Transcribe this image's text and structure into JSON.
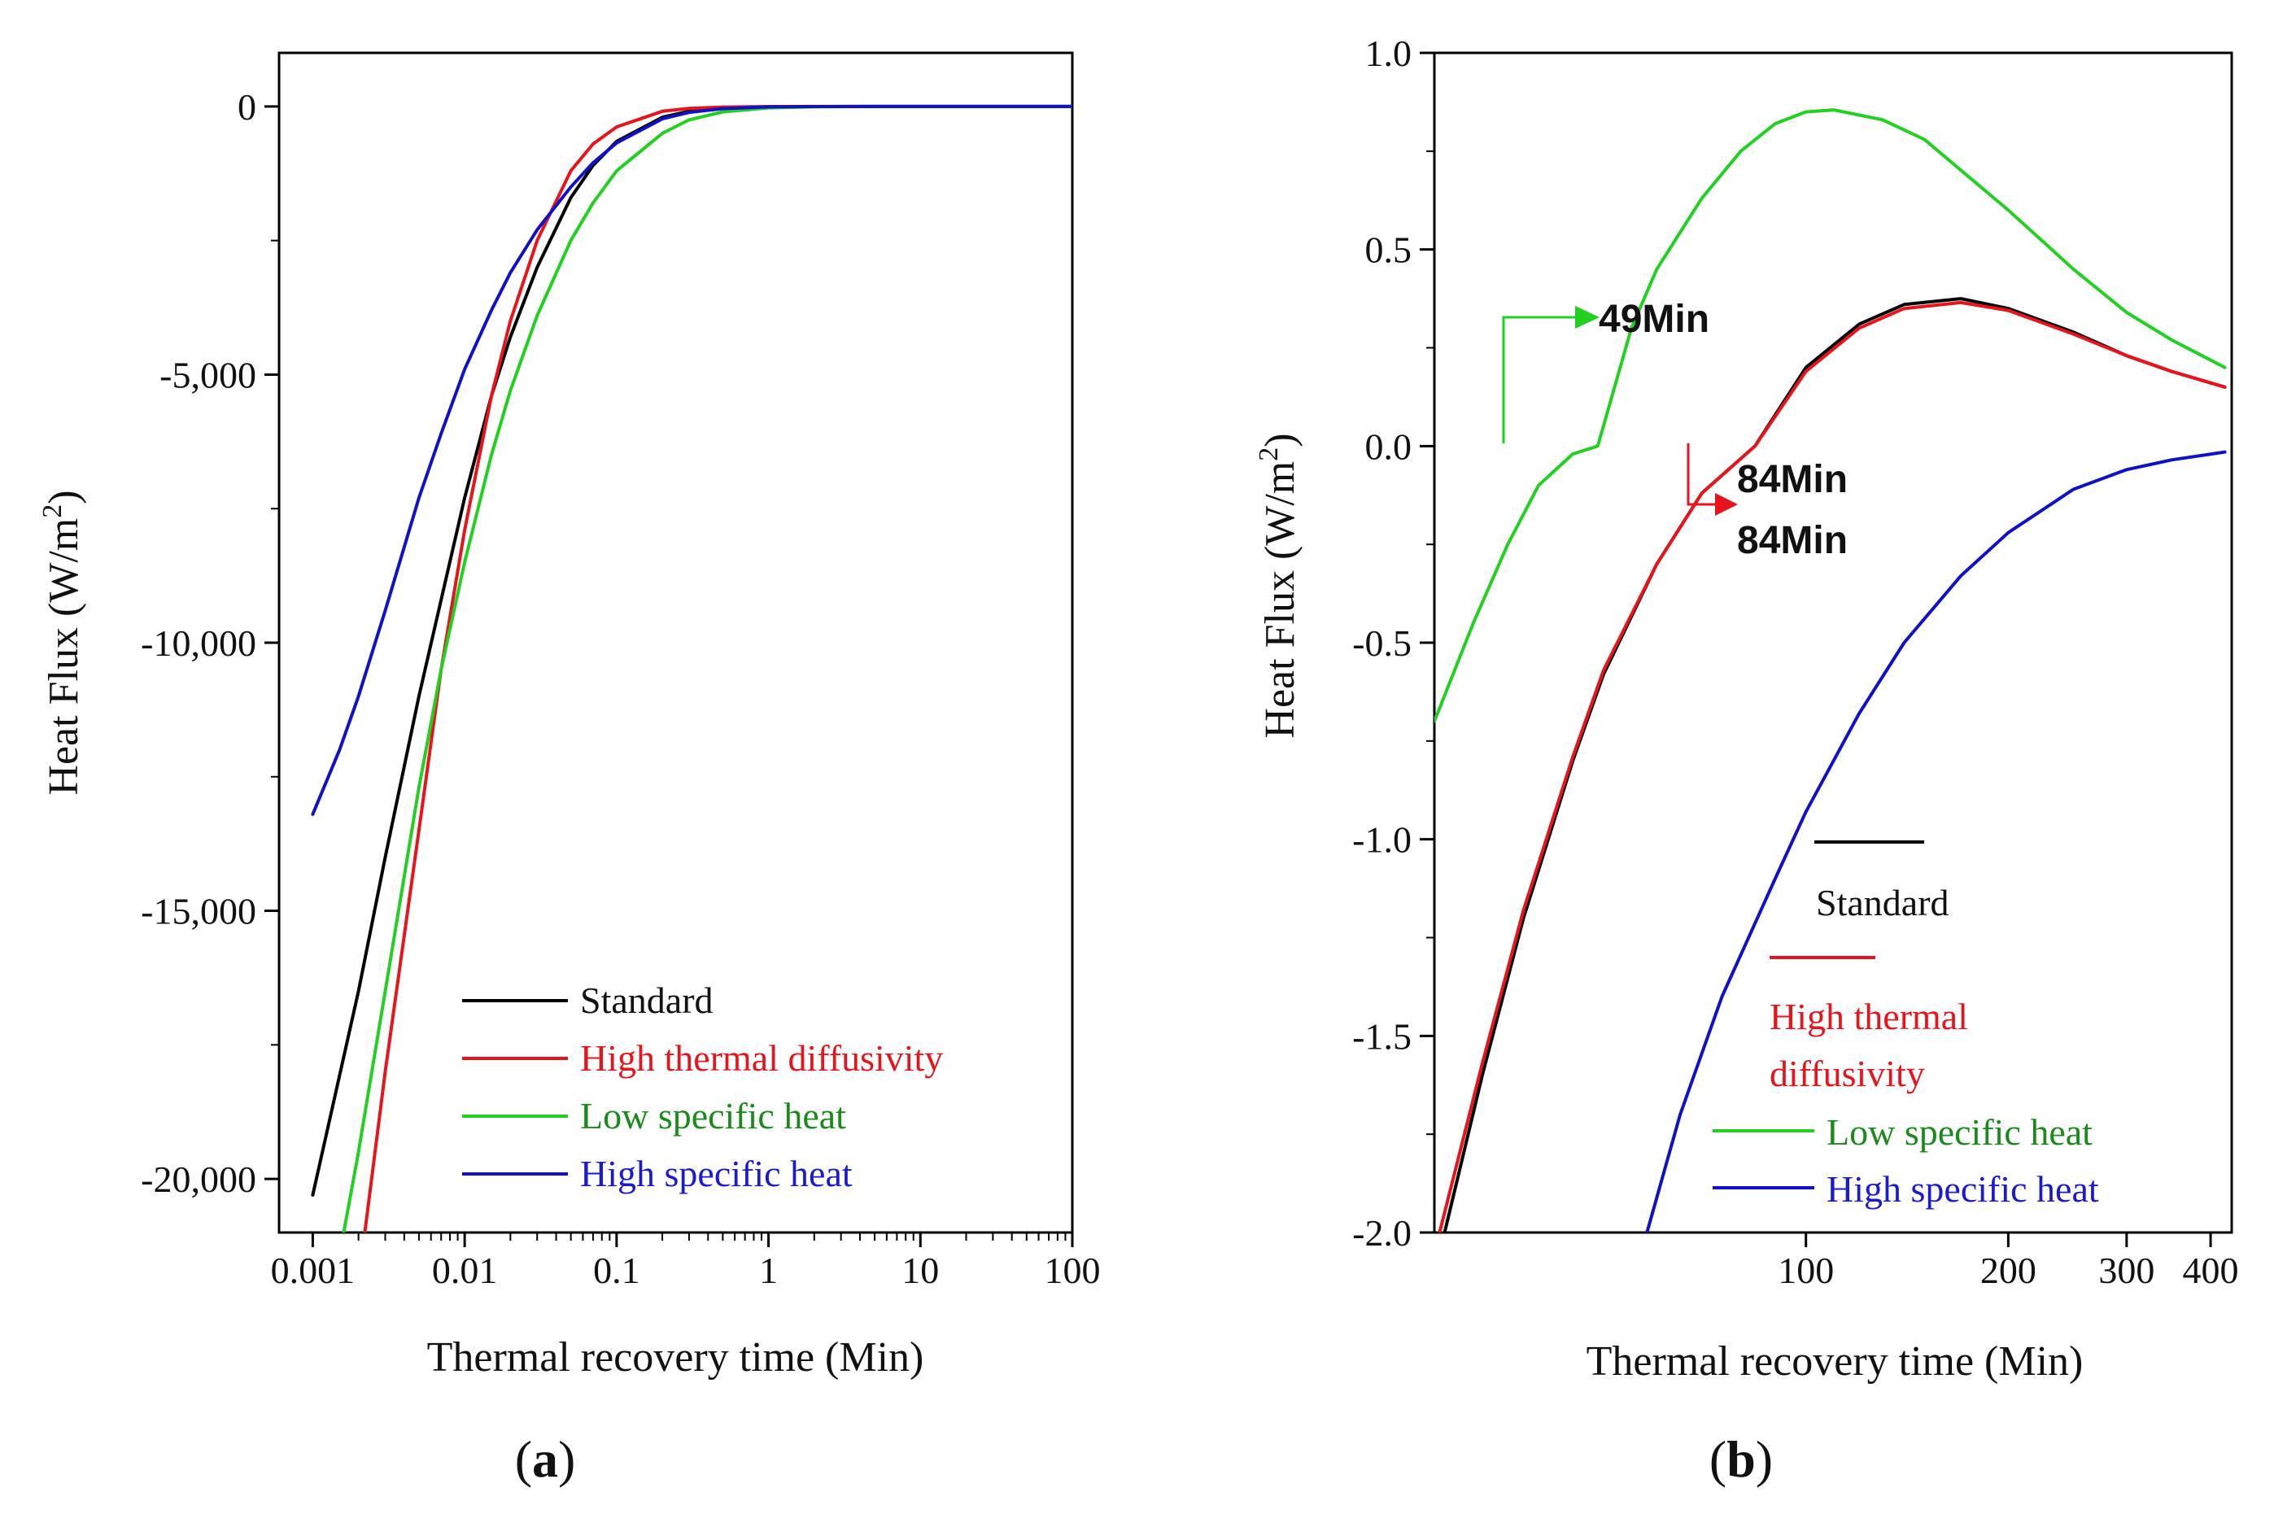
{
  "chart_data": [
    {
      "panel_label": "a",
      "type": "line",
      "xlabel": "Thermal recovery time (Min)",
      "ylabel": "Heat Flux (W/m²)",
      "xscale": "log",
      "xlim": [
        0.0006,
        100
      ],
      "ylim": [
        -21000,
        1000
      ],
      "xticks": [
        0.001,
        0.01,
        0.1,
        1,
        10,
        100
      ],
      "xtick_labels": [
        "0.001",
        "0.01",
        "0.1",
        "1",
        "10",
        "100"
      ],
      "yticks": [
        0,
        -5000,
        -10000,
        -15000,
        -20000
      ],
      "ytick_labels": [
        "0",
        "-5,000",
        "-10,000",
        "-15,000",
        "-20,000"
      ],
      "grid": false,
      "legend_position": "bottom-right",
      "series": [
        {
          "name": "Standard",
          "color": "#000000",
          "x": [
            0.001,
            0.002,
            0.003,
            0.005,
            0.007,
            0.01,
            0.015,
            0.02,
            0.03,
            0.05,
            0.07,
            0.1,
            0.2,
            0.3,
            0.5,
            1,
            2,
            5,
            10,
            100
          ],
          "y": [
            -20300,
            -16500,
            -14000,
            -11000,
            -9200,
            -7300,
            -5400,
            -4300,
            -3000,
            -1700,
            -1100,
            -650,
            -200,
            -90,
            -30,
            -5,
            -1,
            0,
            0,
            0
          ]
        },
        {
          "name": "High thermal diffusivity",
          "color": "#e8141c",
          "x": [
            0.0022,
            0.003,
            0.005,
            0.007,
            0.01,
            0.015,
            0.02,
            0.03,
            0.05,
            0.07,
            0.1,
            0.2,
            0.3,
            0.5,
            1,
            2,
            5,
            10,
            100
          ],
          "y": [
            -21000,
            -18000,
            -13500,
            -10500,
            -7900,
            -5400,
            -4000,
            -2500,
            -1200,
            -700,
            -380,
            -90,
            -35,
            -10,
            -1,
            0,
            0,
            0,
            0
          ]
        },
        {
          "name": "Low specific heat",
          "color": "#22d022",
          "x": [
            0.0016,
            0.002,
            0.003,
            0.005,
            0.007,
            0.01,
            0.015,
            0.02,
            0.03,
            0.05,
            0.07,
            0.1,
            0.2,
            0.3,
            0.5,
            1,
            2,
            5,
            10,
            100
          ],
          "y": [
            -21000,
            -19500,
            -16500,
            -12700,
            -10500,
            -8500,
            -6500,
            -5300,
            -3900,
            -2500,
            -1800,
            -1200,
            -500,
            -250,
            -100,
            -25,
            -5,
            0,
            0,
            0
          ]
        },
        {
          "name": "High specific heat",
          "color": "#1010c8",
          "x": [
            0.001,
            0.0015,
            0.002,
            0.003,
            0.005,
            0.007,
            0.01,
            0.015,
            0.02,
            0.03,
            0.05,
            0.07,
            0.1,
            0.2,
            0.3,
            0.5,
            1,
            2,
            5,
            10,
            100
          ],
          "y": [
            -13200,
            -12000,
            -11000,
            -9400,
            -7300,
            -6100,
            -4900,
            -3800,
            -3100,
            -2300,
            -1500,
            -1050,
            -680,
            -230,
            -110,
            -40,
            -8,
            -1,
            0,
            0,
            0
          ]
        }
      ],
      "annotations": []
    },
    {
      "panel_label": "b",
      "type": "line",
      "xlabel": "Thermal recovery time (Min)",
      "ylabel": "Heat Flux (W/m²)",
      "xscale": "log",
      "xlim": [
        28,
        430
      ],
      "ylim": [
        -2.0,
        1.0
      ],
      "xticks": [
        100,
        200,
        300,
        400
      ],
      "xtick_labels": [
        "100",
        "200",
        "300",
        "400"
      ],
      "yticks": [
        1.0,
        0.5,
        0.0,
        -0.5,
        -1.0,
        -1.5,
        -2.0
      ],
      "ytick_labels": [
        "1.0",
        "0.5",
        "0.0",
        "-0.5",
        "-1.0",
        "-1.5",
        "-2.0"
      ],
      "grid": false,
      "legend_position": "bottom-right",
      "series": [
        {
          "name": "Standard",
          "color": "#000000",
          "x": [
            29,
            33,
            38,
            45,
            50,
            60,
            70,
            84,
            100,
            120,
            140,
            170,
            200,
            250,
            300,
            350,
            420
          ],
          "y": [
            -2.0,
            -1.6,
            -1.2,
            -0.8,
            -0.58,
            -0.3,
            -0.12,
            0.0,
            0.2,
            0.31,
            0.36,
            0.375,
            0.35,
            0.29,
            0.23,
            0.19,
            0.15
          ]
        },
        {
          "name": "High thermal diffusivity",
          "color": "#e8141c",
          "x": [
            28.5,
            33,
            38,
            45,
            50,
            60,
            70,
            84,
            100,
            120,
            140,
            170,
            200,
            250,
            300,
            350,
            420
          ],
          "y": [
            -2.0,
            -1.57,
            -1.18,
            -0.79,
            -0.57,
            -0.3,
            -0.12,
            0.0,
            0.19,
            0.3,
            0.35,
            0.365,
            0.345,
            0.285,
            0.23,
            0.19,
            0.15
          ]
        },
        {
          "name": "Low specific heat",
          "color": "#22d022",
          "x": [
            28,
            32,
            36,
            40,
            45,
            49,
            55,
            60,
            70,
            80,
            90,
            100,
            110,
            130,
            150,
            200,
            250,
            300,
            350,
            420
          ],
          "y": [
            -0.7,
            -0.45,
            -0.25,
            -0.1,
            -0.02,
            0.0,
            0.3,
            0.45,
            0.63,
            0.75,
            0.82,
            0.85,
            0.855,
            0.83,
            0.78,
            0.6,
            0.45,
            0.34,
            0.27,
            0.2
          ]
        },
        {
          "name": "High specific heat",
          "color": "#1010c8",
          "x": [
            58,
            65,
            75,
            90,
            100,
            120,
            140,
            170,
            200,
            250,
            300,
            350,
            420
          ],
          "y": [
            -2.0,
            -1.7,
            -1.4,
            -1.1,
            -0.93,
            -0.68,
            -0.5,
            -0.33,
            -0.22,
            -0.11,
            -0.06,
            -0.035,
            -0.015
          ]
        }
      ],
      "annotations": [
        {
          "text": "49Min",
          "color": "#22d022",
          "x": 49,
          "y": 0.0
        },
        {
          "text": "84Min",
          "color": "#000000",
          "x": 84,
          "y": 0.0
        },
        {
          "text": "84Min",
          "color": "#e8141c",
          "x": 84,
          "y": 0.0
        }
      ]
    }
  ]
}
